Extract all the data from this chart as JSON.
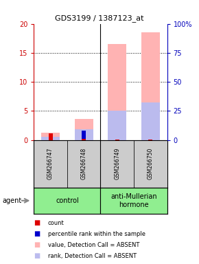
{
  "title": "GDS3199 / 1387123_at",
  "samples": [
    "GSM266747",
    "GSM266748",
    "GSM266749",
    "GSM266750"
  ],
  "pink_bar_values": [
    1.3,
    3.6,
    16.5,
    18.5
  ],
  "light_blue_bar_values": [
    0.5,
    1.8,
    5.0,
    6.5
  ],
  "red_bar_values": [
    1.1,
    0.15,
    0.1,
    0.1
  ],
  "dark_blue_bar_values": [
    0.35,
    1.55,
    0.1,
    0.1
  ],
  "ylim_left": [
    0,
    20
  ],
  "ylim_right": [
    0,
    100
  ],
  "yticks_left": [
    0,
    5,
    10,
    15,
    20
  ],
  "ytick_labels_left": [
    "0",
    "5",
    "10",
    "15",
    "20"
  ],
  "yticks_right": [
    0,
    25,
    50,
    75,
    100
  ],
  "ytick_labels_right": [
    "0",
    "25",
    "50",
    "75",
    "100%"
  ],
  "left_axis_color": "#CC0000",
  "right_axis_color": "#0000BB",
  "pink_color": "#FFB3B3",
  "light_blue_color": "#BBBBEE",
  "red_color": "#DD0000",
  "dark_blue_color": "#0000CC",
  "background_color": "#ffffff",
  "sample_bg_color": "#CCCCCC",
  "control_label": "control",
  "treatment_label": "anti-Mullerian\nhormone",
  "agent_label": "agent",
  "green_color": "#90EE90",
  "legend_items": [
    {
      "label": "count",
      "color": "#DD0000"
    },
    {
      "label": "percentile rank within the sample",
      "color": "#0000CC"
    },
    {
      "label": "value, Detection Call = ABSENT",
      "color": "#FFB3B3"
    },
    {
      "label": "rank, Detection Call = ABSENT",
      "color": "#BBBBEE"
    }
  ]
}
